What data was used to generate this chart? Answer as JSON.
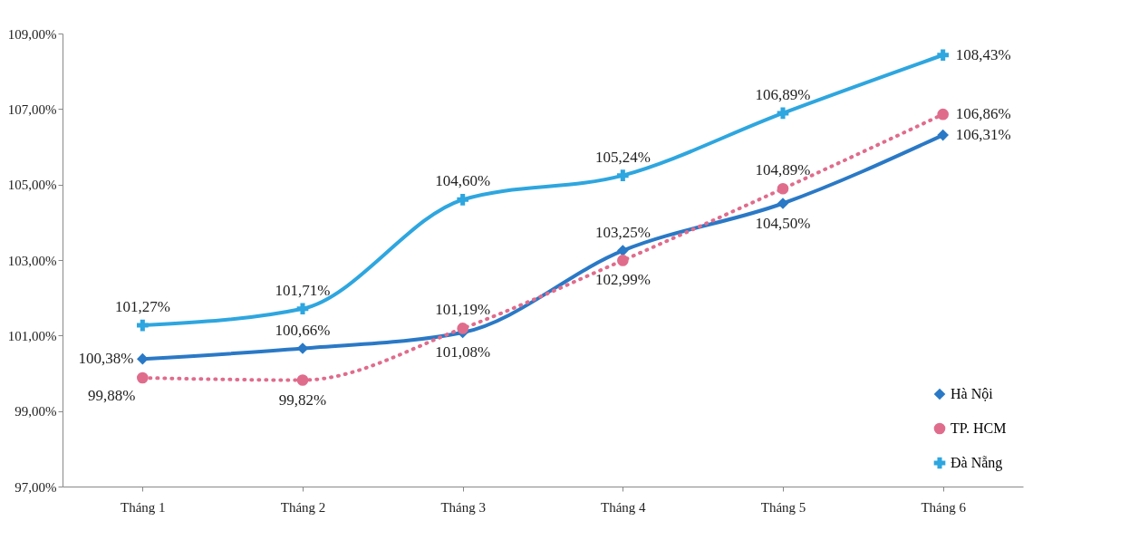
{
  "chart_data": {
    "type": "line",
    "categories": [
      "Tháng 1",
      "Tháng 2",
      "Tháng 3",
      "Tháng 4",
      "Tháng 5",
      "Tháng 6"
    ],
    "ylim": [
      97,
      109
    ],
    "yticks": [
      {
        "value": 97,
        "label": "97,00%"
      },
      {
        "value": 99,
        "label": "99,00%"
      },
      {
        "value": 101,
        "label": "101,00%"
      },
      {
        "value": 103,
        "label": "103,00%"
      },
      {
        "value": 105,
        "label": "105,00%"
      },
      {
        "value": 107,
        "label": "107,00%"
      },
      {
        "value": 109,
        "label": "109,00%"
      }
    ],
    "grid": false,
    "legend": "bottom right",
    "series": [
      {
        "name": "Hà Nội",
        "color": "#2a79c6",
        "marker": "diamond",
        "line_style": "solid",
        "values": [
          100.38,
          100.66,
          101.08,
          103.25,
          104.5,
          106.31
        ],
        "value_labels": [
          "100,38%",
          "100,66%",
          "101,08%",
          "103,25%",
          "104,50%",
          "106,31%"
        ]
      },
      {
        "name": "TP. HCM",
        "color": "#e06c8c",
        "marker": "circle",
        "line_style": "dotted",
        "values": [
          99.88,
          99.82,
          101.19,
          102.99,
          104.89,
          106.86
        ],
        "value_labels": [
          "99,88%",
          "99,82%",
          "101,19%",
          "102,99%",
          "104,89%",
          "106,86%"
        ]
      },
      {
        "name": "Đà Nẵng",
        "color": "#2ea6df",
        "marker": "cross",
        "line_style": "solid",
        "values": [
          101.27,
          101.71,
          104.6,
          105.24,
          106.89,
          108.43
        ],
        "value_labels": [
          "101,27%",
          "101,71%",
          "104,60%",
          "105,24%",
          "106,89%",
          "108,43%"
        ]
      }
    ]
  }
}
